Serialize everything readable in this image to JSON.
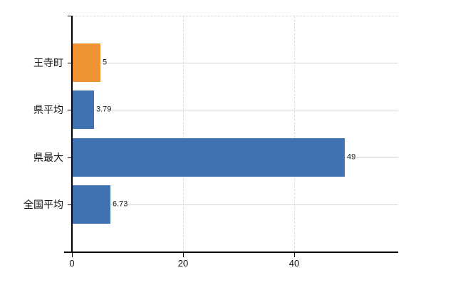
{
  "chart_data": {
    "type": "bar",
    "orientation": "horizontal",
    "title": "",
    "categories": [
      "王寺町",
      "県平均",
      "県最大",
      "全国平均"
    ],
    "values": [
      5,
      3.79,
      49,
      6.73
    ],
    "value_labels": [
      "5",
      "3.79",
      "49",
      "6.73"
    ],
    "x_ticks": [
      0,
      20,
      40
    ],
    "x_tick_labels": [
      "0",
      "20",
      "40"
    ],
    "xlim": [
      0,
      58.7
    ],
    "grid": true,
    "legend_position": "none",
    "highlight_category": "王寺町",
    "bar_colors": [
      "#EE9434",
      "#4173B3",
      "#4173B3",
      "#4173B3"
    ],
    "colors": {
      "highlight_bar": "#EE9434",
      "bar": "#4173B3",
      "h_gridline": "#D3DBD1",
      "v_gridline": "#DCDCDC",
      "plot_top_border": "#D8D8D8",
      "axis": "#000000",
      "label_text": "#1A1A1A",
      "background": "#FFFFFF"
    }
  }
}
